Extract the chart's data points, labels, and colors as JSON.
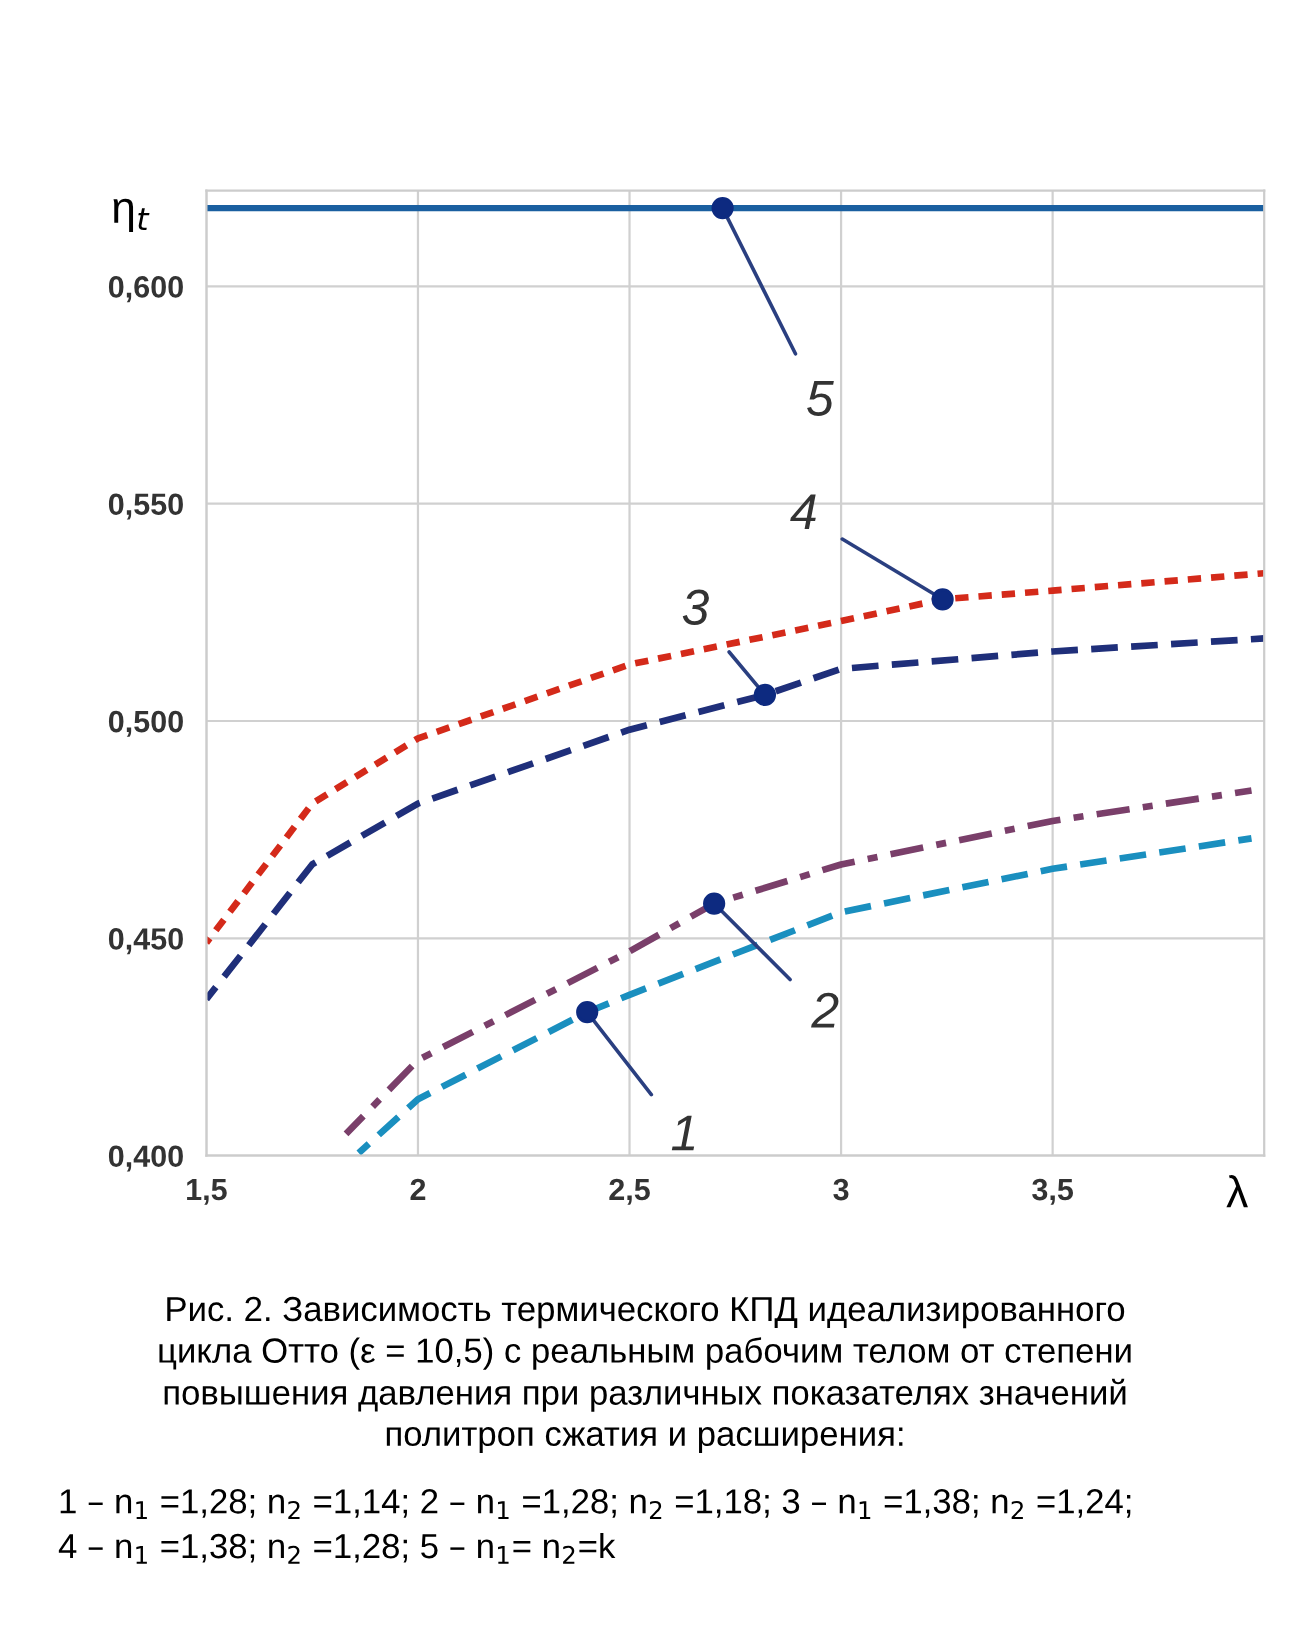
{
  "chart_data": {
    "type": "line",
    "ylabel": "η$_{t}$",
    "xlabel": "λ",
    "xlim": [
      1.5,
      4.0
    ],
    "xticks": [
      {
        "value": 1.5,
        "label": "1,5"
      },
      {
        "value": 2,
        "label": "2"
      },
      {
        "value": 2.5,
        "label": "2,5"
      },
      {
        "value": 3,
        "label": "3"
      },
      {
        "value": 3.5,
        "label": "3,5"
      }
    ],
    "ylim": [
      0.4,
      0.622
    ],
    "yticks": [
      {
        "value": 0.4,
        "label": "0,400"
      },
      {
        "value": 0.45,
        "label": "0,450"
      },
      {
        "value": 0.5,
        "label": "0,500"
      },
      {
        "value": 0.55,
        "label": "0,550"
      },
      {
        "value": 0.6,
        "label": "0,600"
      }
    ],
    "grid": true,
    "series": [
      {
        "color": "#1a8fbf",
        "line_style": "dashed",
        "x": [
          1.86,
          2.0,
          2.4,
          2.5,
          3.0,
          3.5,
          3.97
        ],
        "values": [
          0.4006,
          0.413,
          0.433,
          0.437,
          0.456,
          0.466,
          0.473
        ]
      },
      {
        "color": "#7a3f6a",
        "line_style": "dashdot",
        "x": [
          1.83,
          2.0,
          2.5,
          2.7,
          3.0,
          3.5,
          3.97
        ],
        "values": [
          0.405,
          0.422,
          0.447,
          0.458,
          0.467,
          0.477,
          0.484
        ]
      },
      {
        "color": "#1f2f7a",
        "line_style": "dashed",
        "x": [
          1.5,
          1.75,
          2.0,
          2.5,
          2.82,
          3.0,
          3.5,
          4.0
        ],
        "values": [
          0.436,
          0.467,
          0.481,
          0.498,
          0.506,
          0.512,
          0.516,
          0.519
        ]
      },
      {
        "color": "#d42a1a",
        "line_style": "dotted",
        "x": [
          1.5,
          1.75,
          2.0,
          2.5,
          3.0,
          3.24,
          3.5,
          4.0
        ],
        "values": [
          0.449,
          0.481,
          0.496,
          0.513,
          0.523,
          0.528,
          0.53,
          0.534
        ]
      },
      {
        "color": "#1a5fa0",
        "line_style": "solid",
        "x": [
          1.5,
          4.0
        ],
        "values": [
          0.618,
          0.618
        ]
      }
    ],
    "annotations": [
      {
        "text": "1",
        "x": 2.4,
        "y": 0.433
      },
      {
        "text": "2",
        "x": 2.7,
        "y": 0.458
      },
      {
        "text": "3",
        "x": 2.82,
        "y": 0.506
      },
      {
        "text": "4",
        "x": 3.24,
        "y": 0.528
      },
      {
        "text": "5",
        "x": 2.72,
        "y": 0.618
      },
      "Рис. 2. Зависимость термического КПД идеализированного\nцикла Отто (ε = 10,5) с реальным рабочим телом от степени\nповышения давления при различных показателях значений\nполитроп сжатия и расширения:",
      "1 – n$_{1}$ =1,28; n$_{2}$ =1,14; 2 – n$_{1}$ =1,28; n$_{2}$ =1,18; 3 – n$_{1}$ =1,38; n$_{2}$ =1,24;\n4 – n$_{1}$ =1,38; n$_{2}$ =1,28; 5 – n$_{1}$= n$_{2}$=k"
    ]
  }
}
